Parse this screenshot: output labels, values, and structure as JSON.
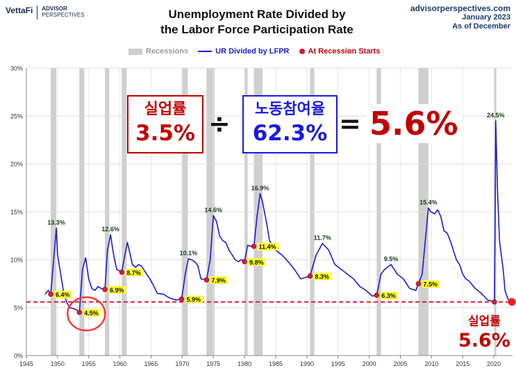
{
  "header": {
    "logo_vettafi": "VettaFi",
    "logo_ap_line1": "ADVISOR",
    "logo_ap_line2": "PERSPECTIVES",
    "title_line1": "Unemployment Rate Divided by",
    "title_line2": "the Labor Force Participation Rate",
    "source_site": "advisorperspectives.com",
    "source_date": "January 2023",
    "source_asof": "As of December"
  },
  "legend": {
    "recessions": "Recessions",
    "series": "UR Divided by LFPR",
    "recession_starts": "At Recession Starts"
  },
  "overlay": {
    "ur_label": "실업률",
    "ur_value": "3.5%",
    "div_sign": "÷",
    "lfpr_label": "노동참여율",
    "lfpr_value": "62.3%",
    "eq_sign": "=",
    "result": "5.6%",
    "bottom_label": "실업률",
    "bottom_value": "5.6%"
  },
  "colors": {
    "series": "#1a1adb",
    "recession": "#cfcfcf",
    "recession_dot": "#e0183c",
    "reference_line": "#e0183c",
    "highlight_label": "#ffff33",
    "accent_red": "#c00000"
  },
  "chart_data": {
    "type": "line",
    "title": "Unemployment Rate Divided by the Labor Force Participation Rate",
    "xlim": [
      1945,
      2023
    ],
    "ylim": [
      0,
      30
    ],
    "x_ticks": [
      "1945",
      "1950",
      "1955",
      "1960",
      "1965",
      "1970",
      "1975",
      "1980",
      "1985",
      "1990",
      "1995",
      "2000",
      "2005",
      "2010",
      "2015",
      "2020"
    ],
    "y_ticks": [
      "0%",
      "5%",
      "10%",
      "15%",
      "20%",
      "25%",
      "30%"
    ],
    "grid": true,
    "reference_line": 5.6,
    "recessions": [
      [
        1948.9,
        1949.8
      ],
      [
        1953.5,
        1954.3
      ],
      [
        1957.6,
        1958.3
      ],
      [
        1960.3,
        1961.1
      ],
      [
        1969.9,
        1970.9
      ],
      [
        1973.9,
        1975.2
      ],
      [
        1980.0,
        1980.5
      ],
      [
        1981.5,
        1982.9
      ],
      [
        1990.5,
        1991.2
      ],
      [
        2001.2,
        2001.9
      ],
      [
        2007.9,
        2009.5
      ],
      [
        2020.1,
        2020.4
      ]
    ],
    "series": [
      {
        "name": "UR Divided by LFPR",
        "x": [
          1948.0,
          1948.5,
          1948.9,
          1949.5,
          1949.8,
          1950.0,
          1950.5,
          1951.0,
          1951.5,
          1952.0,
          1952.5,
          1953.0,
          1953.5,
          1954.0,
          1954.5,
          1955.0,
          1955.5,
          1956.0,
          1956.5,
          1957.0,
          1957.6,
          1958.0,
          1958.5,
          1959.0,
          1959.5,
          1960.3,
          1960.8,
          1961.2,
          1961.5,
          1962.0,
          1962.5,
          1963.0,
          1963.5,
          1964.0,
          1965.0,
          1966.0,
          1967.0,
          1968.0,
          1969.0,
          1969.9,
          1970.5,
          1971.0,
          1971.5,
          1972.0,
          1972.5,
          1973.0,
          1973.9,
          1974.5,
          1975.0,
          1975.5,
          1976.0,
          1976.5,
          1977.0,
          1977.5,
          1978.0,
          1978.5,
          1979.0,
          1979.5,
          1980.0,
          1980.5,
          1981.0,
          1981.5,
          1982.0,
          1982.5,
          1982.9,
          1983.5,
          1984.0,
          1985.0,
          1986.0,
          1987.0,
          1988.0,
          1989.0,
          1990.5,
          1991.5,
          1992.5,
          1993.5,
          1994.5,
          1995.5,
          1996.5,
          1997.5,
          1998.5,
          1999.5,
          2000.0,
          2000.5,
          2001.2,
          2001.9,
          2002.5,
          2003.5,
          2004.5,
          2005.5,
          2006.5,
          2007.5,
          2007.9,
          2008.5,
          2009.0,
          2009.5,
          2009.9,
          2010.5,
          2011.0,
          2011.5,
          2012.0,
          2012.5,
          2013.0,
          2013.5,
          2014.0,
          2014.5,
          2015.0,
          2015.5,
          2016.0,
          2017.0,
          2018.0,
          2019.0,
          2020.1,
          2020.3,
          2020.6,
          2020.9,
          2021.2,
          2021.5,
          2021.8,
          2022.2,
          2022.5,
          2022.9
        ],
        "y": [
          6.4,
          6.8,
          6.4,
          11.0,
          13.3,
          10.5,
          8.5,
          6.5,
          5.5,
          5.0,
          4.9,
          4.8,
          4.5,
          9.0,
          10.2,
          8.0,
          7.0,
          6.8,
          7.2,
          7.0,
          6.9,
          11.0,
          12.6,
          10.5,
          9.0,
          8.7,
          10.5,
          11.8,
          11.0,
          9.5,
          9.2,
          9.5,
          9.3,
          8.8,
          7.8,
          6.5,
          6.4,
          6.0,
          5.8,
          5.9,
          8.5,
          10.1,
          10.0,
          9.8,
          9.4,
          8.0,
          7.9,
          10.0,
          14.6,
          14.0,
          12.5,
          12.0,
          11.8,
          11.0,
          10.5,
          10.0,
          9.8,
          10.0,
          9.8,
          11.5,
          11.4,
          11.4,
          14.5,
          16.9,
          16.0,
          14.0,
          12.0,
          11.0,
          10.5,
          9.8,
          9.0,
          8.0,
          8.3,
          10.5,
          11.7,
          11.0,
          9.5,
          9.0,
          8.5,
          8.0,
          7.2,
          6.8,
          6.5,
          6.2,
          6.3,
          8.5,
          9.0,
          9.5,
          8.5,
          8.0,
          7.0,
          6.8,
          7.5,
          8.5,
          12.0,
          15.4,
          15.0,
          14.8,
          15.2,
          14.5,
          13.0,
          12.8,
          12.0,
          11.0,
          10.0,
          9.5,
          8.5,
          8.0,
          7.8,
          7.0,
          6.5,
          5.8,
          5.6,
          24.5,
          17.0,
          12.0,
          10.5,
          9.0,
          6.8,
          6.0,
          5.7,
          5.6
        ]
      }
    ],
    "peak_labels": [
      {
        "x": 1949.8,
        "y": 13.3,
        "label": "13.3%"
      },
      {
        "x": 1958.5,
        "y": 12.6,
        "label": "12.6%"
      },
      {
        "x": 1971.0,
        "y": 10.1,
        "label": "10.1%"
      },
      {
        "x": 1975.0,
        "y": 14.6,
        "label": "14.6%"
      },
      {
        "x": 1982.5,
        "y": 16.9,
        "label": "16.9%"
      },
      {
        "x": 1992.5,
        "y": 11.7,
        "label": "11.7%"
      },
      {
        "x": 2003.5,
        "y": 9.5,
        "label": "9.5%"
      },
      {
        "x": 2009.5,
        "y": 15.4,
        "label": "15.4%"
      },
      {
        "x": 2020.3,
        "y": 24.5,
        "label": "24.5%"
      }
    ],
    "recession_start_points": [
      {
        "x": 1948.9,
        "y": 6.4,
        "label": "6.4%"
      },
      {
        "x": 1953.5,
        "y": 4.5,
        "label": "4.5%"
      },
      {
        "x": 1957.6,
        "y": 6.9,
        "label": "6.9%"
      },
      {
        "x": 1960.3,
        "y": 8.7,
        "label": "8.7%"
      },
      {
        "x": 1969.9,
        "y": 5.9,
        "label": "5.9%"
      },
      {
        "x": 1973.9,
        "y": 7.9,
        "label": "7.9%"
      },
      {
        "x": 1980.0,
        "y": 9.8,
        "label": "9.8%"
      },
      {
        "x": 1981.5,
        "y": 11.4,
        "label": "11.4%"
      },
      {
        "x": 1990.5,
        "y": 8.3,
        "label": "8.3%"
      },
      {
        "x": 2001.2,
        "y": 6.3,
        "label": "6.3%"
      },
      {
        "x": 2007.9,
        "y": 7.5,
        "label": "7.5%"
      },
      {
        "x": 2020.1,
        "y": 5.6,
        "label": ""
      }
    ],
    "current_point": {
      "x": 2022.9,
      "y": 5.6,
      "label": "5.6%"
    },
    "highlight_circle": {
      "x": 1953.5,
      "y": 4.5
    }
  }
}
